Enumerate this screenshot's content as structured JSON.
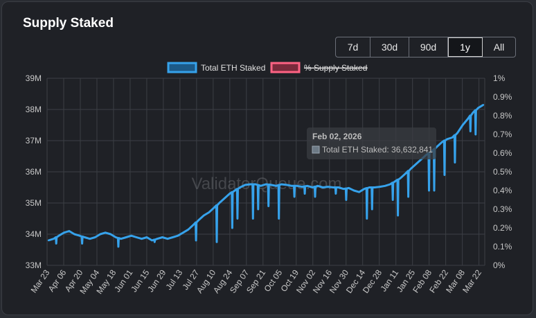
{
  "title": "Supply Staked",
  "ranges": {
    "items": [
      {
        "label": "7d",
        "active": false
      },
      {
        "label": "30d",
        "active": false
      },
      {
        "label": "90d",
        "active": false
      },
      {
        "label": "1y",
        "active": true
      },
      {
        "label": "All",
        "active": false
      }
    ]
  },
  "watermark": "ValidatorQueue.com",
  "tooltip": {
    "date": "Feb 02, 2026",
    "label": "Total ETH Staked: 36,632,841"
  },
  "colors": {
    "series_eth": "#36a2eb",
    "series_pct": "#ff6384",
    "grid": "#3c3f45"
  },
  "chart_data": {
    "type": "line",
    "title": "Supply Staked",
    "legend": [
      {
        "name": "Total ETH Staked",
        "color": "#36a2eb",
        "hidden": false
      },
      {
        "name": "% Supply Staked",
        "color": "#ff6384",
        "hidden": true
      }
    ],
    "y_left": {
      "min": 33,
      "max": 39,
      "ticks": [
        "33M",
        "34M",
        "35M",
        "36M",
        "37M",
        "38M",
        "39M"
      ]
    },
    "y_right": {
      "min": 0,
      "max": 1,
      "ticks": [
        "0%",
        "0.1%",
        "0.2%",
        "0.3%",
        "0.4%",
        "0.5%",
        "0.6%",
        "0.7%",
        "0.8%",
        "0.9%",
        "1%"
      ]
    },
    "x_labels": [
      "Mar 23",
      "Apr 06",
      "Apr 20",
      "May 04",
      "May 18",
      "Jun 01",
      "Jun 15",
      "Jun 29",
      "Jul 13",
      "Jul 27",
      "Aug 10",
      "Aug 24",
      "Sep 07",
      "Sep 21",
      "Oct 05",
      "Oct 19",
      "Nov 02",
      "Nov 16",
      "Nov 30",
      "Dec 14",
      "Dec 28",
      "Jan 11",
      "Jan 25",
      "Feb 08",
      "Feb 22",
      "Mar 08",
      "Mar 22"
    ],
    "series": [
      {
        "name": "Total ETH Staked",
        "unit": "M ETH",
        "points": [
          [
            0,
            33.8
          ],
          [
            1,
            33.85
          ],
          [
            2,
            33.95
          ],
          [
            3,
            34.05
          ],
          [
            4,
            34.1
          ],
          [
            5,
            34.0
          ],
          [
            6,
            33.95
          ],
          [
            7,
            33.9
          ],
          [
            8,
            33.85
          ],
          [
            9,
            33.9
          ],
          [
            10,
            34.0
          ],
          [
            11,
            34.05
          ],
          [
            12,
            34.0
          ],
          [
            13,
            33.9
          ],
          [
            14,
            33.85
          ],
          [
            15,
            33.9
          ],
          [
            16,
            33.95
          ],
          [
            17,
            33.9
          ],
          [
            18,
            33.85
          ],
          [
            19,
            33.9
          ],
          [
            20,
            33.8
          ],
          [
            21,
            33.85
          ],
          [
            22,
            33.9
          ],
          [
            23,
            33.85
          ],
          [
            24,
            33.9
          ],
          [
            25,
            33.95
          ],
          [
            26,
            34.05
          ],
          [
            27,
            34.15
          ],
          [
            28,
            34.3
          ],
          [
            29,
            34.45
          ],
          [
            30,
            34.6
          ],
          [
            31,
            34.7
          ],
          [
            32,
            34.85
          ],
          [
            33,
            35.0
          ],
          [
            34,
            35.15
          ],
          [
            35,
            35.3
          ],
          [
            36,
            35.4
          ],
          [
            37,
            35.5
          ],
          [
            38,
            35.58
          ],
          [
            39,
            35.6
          ],
          [
            40,
            35.6
          ],
          [
            41,
            35.55
          ],
          [
            42,
            35.6
          ],
          [
            43,
            35.58
          ],
          [
            44,
            35.55
          ],
          [
            45,
            35.6
          ],
          [
            46,
            35.58
          ],
          [
            47,
            35.55
          ],
          [
            48,
            35.55
          ],
          [
            49,
            35.52
          ],
          [
            50,
            35.55
          ],
          [
            51,
            35.5
          ],
          [
            52,
            35.55
          ],
          [
            53,
            35.5
          ],
          [
            54,
            35.52
          ],
          [
            55,
            35.5
          ],
          [
            56,
            35.5
          ],
          [
            57,
            35.45
          ],
          [
            58,
            35.48
          ],
          [
            59,
            35.4
          ],
          [
            60,
            35.35
          ],
          [
            61,
            35.45
          ],
          [
            62,
            35.5
          ],
          [
            63,
            35.5
          ],
          [
            64,
            35.52
          ],
          [
            65,
            35.55
          ],
          [
            66,
            35.6
          ],
          [
            67,
            35.7
          ],
          [
            68,
            35.8
          ],
          [
            69,
            35.95
          ],
          [
            70,
            36.1
          ],
          [
            71,
            36.25
          ],
          [
            72,
            36.4
          ],
          [
            73,
            36.55
          ],
          [
            74,
            36.65
          ],
          [
            75,
            36.8
          ],
          [
            76,
            36.95
          ],
          [
            77,
            37.05
          ],
          [
            78,
            37.1
          ],
          [
            79,
            37.25
          ],
          [
            80,
            37.5
          ],
          [
            81,
            37.7
          ],
          [
            82,
            37.9
          ],
          [
            83,
            38.05
          ],
          [
            84,
            38.15
          ]
        ],
        "dips": [
          [
            1.5,
            33.7
          ],
          [
            6.5,
            33.7
          ],
          [
            13.5,
            33.6
          ],
          [
            20.5,
            33.75
          ],
          [
            28.5,
            33.8
          ],
          [
            32.5,
            33.75
          ],
          [
            35.5,
            34.2
          ],
          [
            36.5,
            34.5
          ],
          [
            39.5,
            34.5
          ],
          [
            40.5,
            34.8
          ],
          [
            42.5,
            34.9
          ],
          [
            44.5,
            34.5
          ],
          [
            47.5,
            35.2
          ],
          [
            49.5,
            35.3
          ],
          [
            51.5,
            35.2
          ],
          [
            55.5,
            35.3
          ],
          [
            57.5,
            35.1
          ],
          [
            61.5,
            34.5
          ],
          [
            62.5,
            34.8
          ],
          [
            66.5,
            35.1
          ],
          [
            67.5,
            34.6
          ],
          [
            69.5,
            35.2
          ],
          [
            73.5,
            35.4
          ],
          [
            74.5,
            35.4
          ],
          [
            76.5,
            35.9
          ],
          [
            78.5,
            36.3
          ],
          [
            81.5,
            37.3
          ],
          [
            82.5,
            37.2
          ]
        ]
      }
    ]
  }
}
